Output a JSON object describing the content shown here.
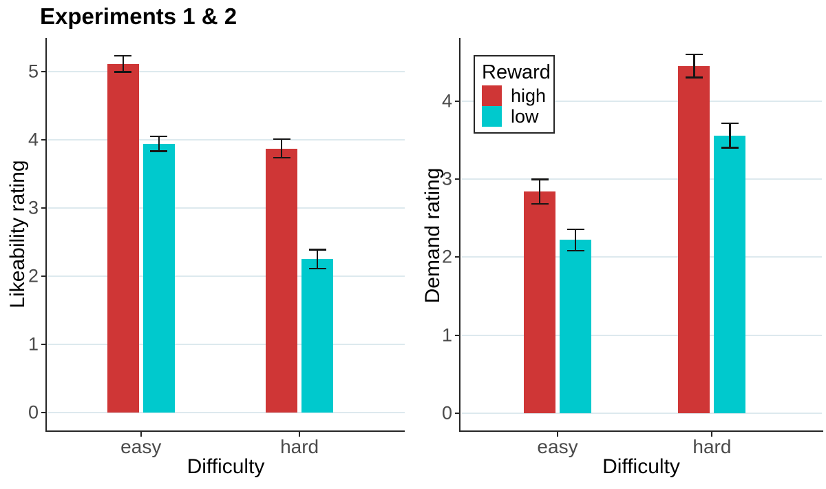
{
  "title": "Experiments 1 & 2",
  "colors": {
    "high": "#cf3636",
    "low": "#00c9cd",
    "grid": "#dde9ee",
    "axis_line": "#252525",
    "axis_text": "#4a4a4a",
    "error_bar": "#161616"
  },
  "legend": {
    "title": "Reward",
    "items": [
      {
        "label": "high",
        "color_key": "high"
      },
      {
        "label": "low",
        "color_key": "low"
      }
    ],
    "position": "top-left-of-right-panel"
  },
  "chart_data": [
    {
      "type": "bar",
      "panel": "left",
      "xlabel": "Difficulty",
      "ylabel": "Likeability rating",
      "categories": [
        "easy",
        "hard"
      ],
      "yticks": [
        0,
        1,
        2,
        3,
        4,
        5
      ],
      "ylim": [
        -0.26,
        5.49
      ],
      "grid": "major-horizontal",
      "legend_position": "none",
      "series": [
        {
          "name": "high",
          "values": [
            5.11,
            3.87
          ],
          "errors": [
            0.12,
            0.14
          ]
        },
        {
          "name": "low",
          "values": [
            3.94,
            2.25
          ],
          "errors": [
            0.11,
            0.14
          ]
        }
      ]
    },
    {
      "type": "bar",
      "panel": "right",
      "xlabel": "Difficulty",
      "ylabel": "Demand rating",
      "categories": [
        "easy",
        "hard"
      ],
      "yticks": [
        0,
        1,
        2,
        3,
        4
      ],
      "ylim": [
        -0.22,
        4.81
      ],
      "grid": "major-horizontal",
      "legend_position": "top-left",
      "series": [
        {
          "name": "high",
          "values": [
            2.84,
            4.45
          ],
          "errors": [
            0.16,
            0.15
          ]
        },
        {
          "name": "low",
          "values": [
            2.22,
            3.56
          ],
          "errors": [
            0.14,
            0.16
          ]
        }
      ]
    }
  ]
}
